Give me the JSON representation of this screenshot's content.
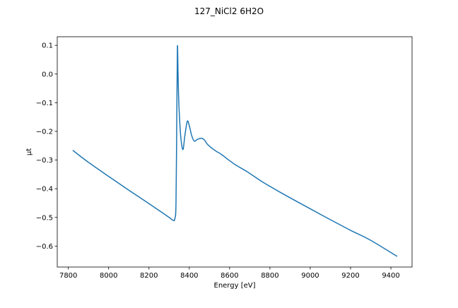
{
  "chart_data": {
    "type": "line",
    "title": "127_NiCl2 6H2O",
    "xlabel": "Energy [eV]",
    "ylabel": "μt",
    "xlim": [
      7745,
      9505
    ],
    "ylim": [
      -0.673,
      0.13
    ],
    "xticks": [
      7800,
      8000,
      8200,
      8400,
      8600,
      8800,
      9000,
      9200,
      9400
    ],
    "yticks": [
      0.1,
      0.0,
      -0.1,
      -0.2,
      -0.3,
      -0.4,
      -0.5,
      -0.6
    ],
    "ytick_labels": [
      "0.1",
      "0.0",
      "−0.1",
      "−0.2",
      "−0.3",
      "−0.4",
      "−0.5",
      "−0.6"
    ],
    "grid": false,
    "series": [
      {
        "name": "127_NiCl2 6H2O",
        "color": "#1f77b4",
        "x": [
          7822,
          7900,
          8000,
          8100,
          8200,
          8267,
          8300,
          8320,
          8328,
          8334,
          8338,
          8341,
          8344,
          8347,
          8353,
          8360,
          8369,
          8378,
          8390,
          8400,
          8412,
          8425,
          8440,
          8460,
          8475,
          8490,
          8513,
          8535,
          8559,
          8590,
          8630,
          8688,
          8758,
          8850,
          9000,
          9100,
          9200,
          9300,
          9431
        ],
        "y": [
          -0.266,
          -0.308,
          -0.357,
          -0.405,
          -0.452,
          -0.484,
          -0.5,
          -0.51,
          -0.505,
          -0.452,
          -0.15,
          0.094,
          0.01,
          -0.08,
          -0.173,
          -0.235,
          -0.263,
          -0.215,
          -0.165,
          -0.18,
          -0.215,
          -0.234,
          -0.228,
          -0.224,
          -0.23,
          -0.245,
          -0.259,
          -0.27,
          -0.28,
          -0.297,
          -0.317,
          -0.341,
          -0.374,
          -0.412,
          -0.47,
          -0.508,
          -0.545,
          -0.58,
          -0.636
        ]
      }
    ]
  }
}
